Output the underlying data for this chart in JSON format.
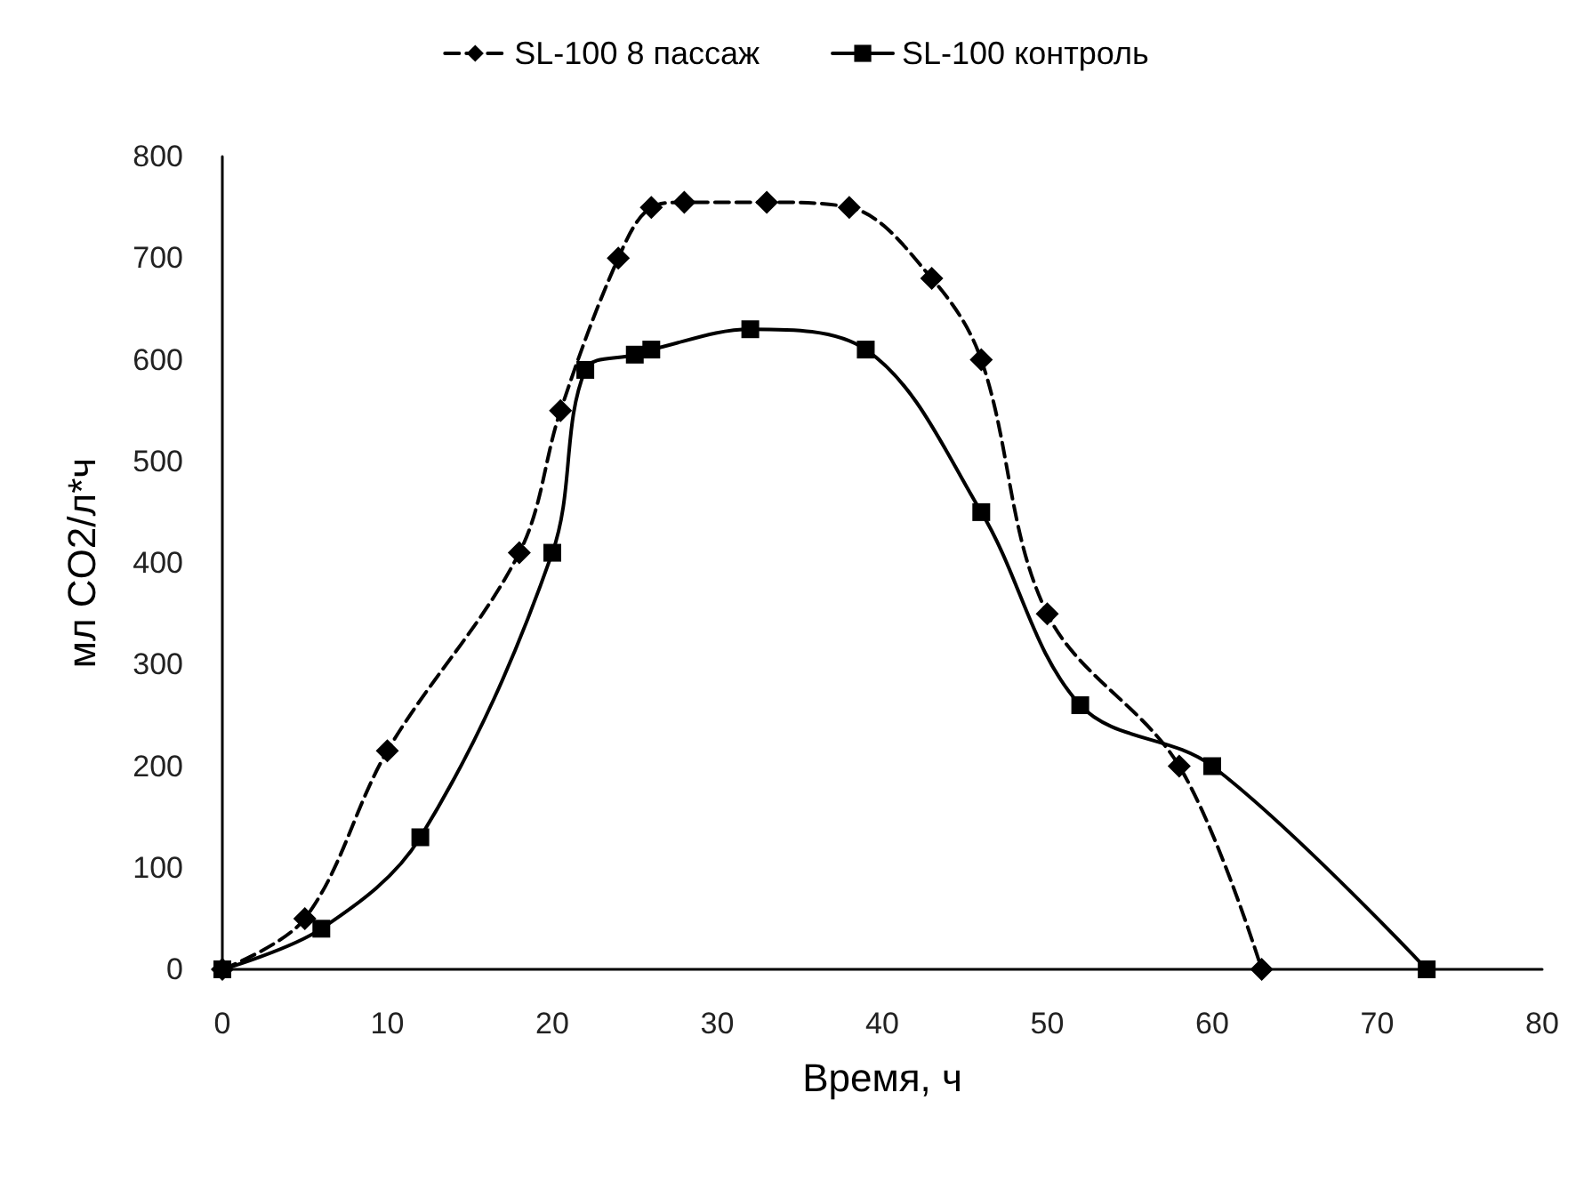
{
  "chart_data": {
    "type": "line",
    "xlabel": "Время, ч",
    "ylabel": "мл CO2/л*ч",
    "xlim": [
      0,
      80
    ],
    "xticks": [
      0,
      10,
      20,
      30,
      40,
      50,
      60,
      70,
      80
    ],
    "ylim": [
      0,
      800
    ],
    "yticks": [
      0,
      100,
      200,
      300,
      400,
      500,
      600,
      700,
      800
    ],
    "grid": false,
    "legend": "top",
    "series": [
      {
        "name": "SL-100 8 пассаж",
        "color": "#000000",
        "marker": "diamond",
        "line_style": "dashed",
        "x": [
          0,
          5,
          10,
          18,
          20.5,
          24,
          26,
          28,
          33,
          38,
          43,
          46,
          50,
          58,
          63
        ],
        "values": [
          0,
          50,
          215,
          410,
          550,
          700,
          750,
          755,
          755,
          750,
          680,
          600,
          350,
          200,
          0
        ]
      },
      {
        "name": "SL-100 контроль",
        "color": "#000000",
        "marker": "square",
        "line_style": "solid",
        "x": [
          0,
          6,
          12,
          20,
          22,
          25,
          26,
          32,
          39,
          46,
          52,
          60,
          73
        ],
        "values": [
          0,
          40,
          130,
          410,
          590,
          605,
          610,
          630,
          610,
          450,
          260,
          200,
          0
        ]
      }
    ]
  }
}
